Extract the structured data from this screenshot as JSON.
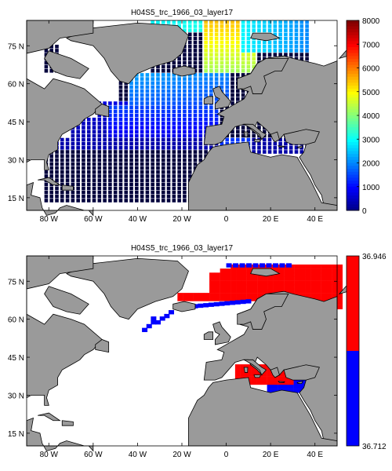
{
  "chart_data": [
    {
      "type": "heatmap",
      "title": "H04S5_trc_1966_03_layer17",
      "x_ticks": [
        "80 W",
        "60 W",
        "40 W",
        "20 W",
        "0",
        "20 E",
        "40 E"
      ],
      "y_ticks": [
        "75 N",
        "60 N",
        "45 N",
        "30 N",
        "15 N"
      ],
      "xlim": [
        -90,
        50
      ],
      "ylim": [
        10,
        85
      ],
      "colorbar": {
        "min": 0,
        "max": 8000,
        "ticks": [
          0,
          1000,
          2000,
          3000,
          4000,
          5000,
          6000,
          7000,
          8000
        ],
        "colormap": "jet"
      },
      "colors": {
        "land": "#9a9a9a",
        "coast": "#000000",
        "deep": "#00003c"
      }
    },
    {
      "type": "heatmap",
      "title": "H04S5_trc_1966_03_layer17",
      "x_ticks": [
        "80 W",
        "60 W",
        "40 W",
        "20 W",
        "0",
        "20 E",
        "40 E"
      ],
      "y_ticks": [
        "75 N",
        "60 N",
        "45 N",
        "30 N",
        "15 N"
      ],
      "xlim": [
        -90,
        50
      ],
      "ylim": [
        10,
        85
      ],
      "colorbar": {
        "min": 36.712,
        "max": 36.946,
        "tick_labels": [
          "36.946",
          "36.712"
        ],
        "colors": [
          "#ff0000",
          "#0000ff"
        ]
      },
      "colors": {
        "land": "#9a9a9a",
        "coast": "#000000",
        "high": "#ff0000",
        "low": "#0000ff"
      }
    }
  ]
}
